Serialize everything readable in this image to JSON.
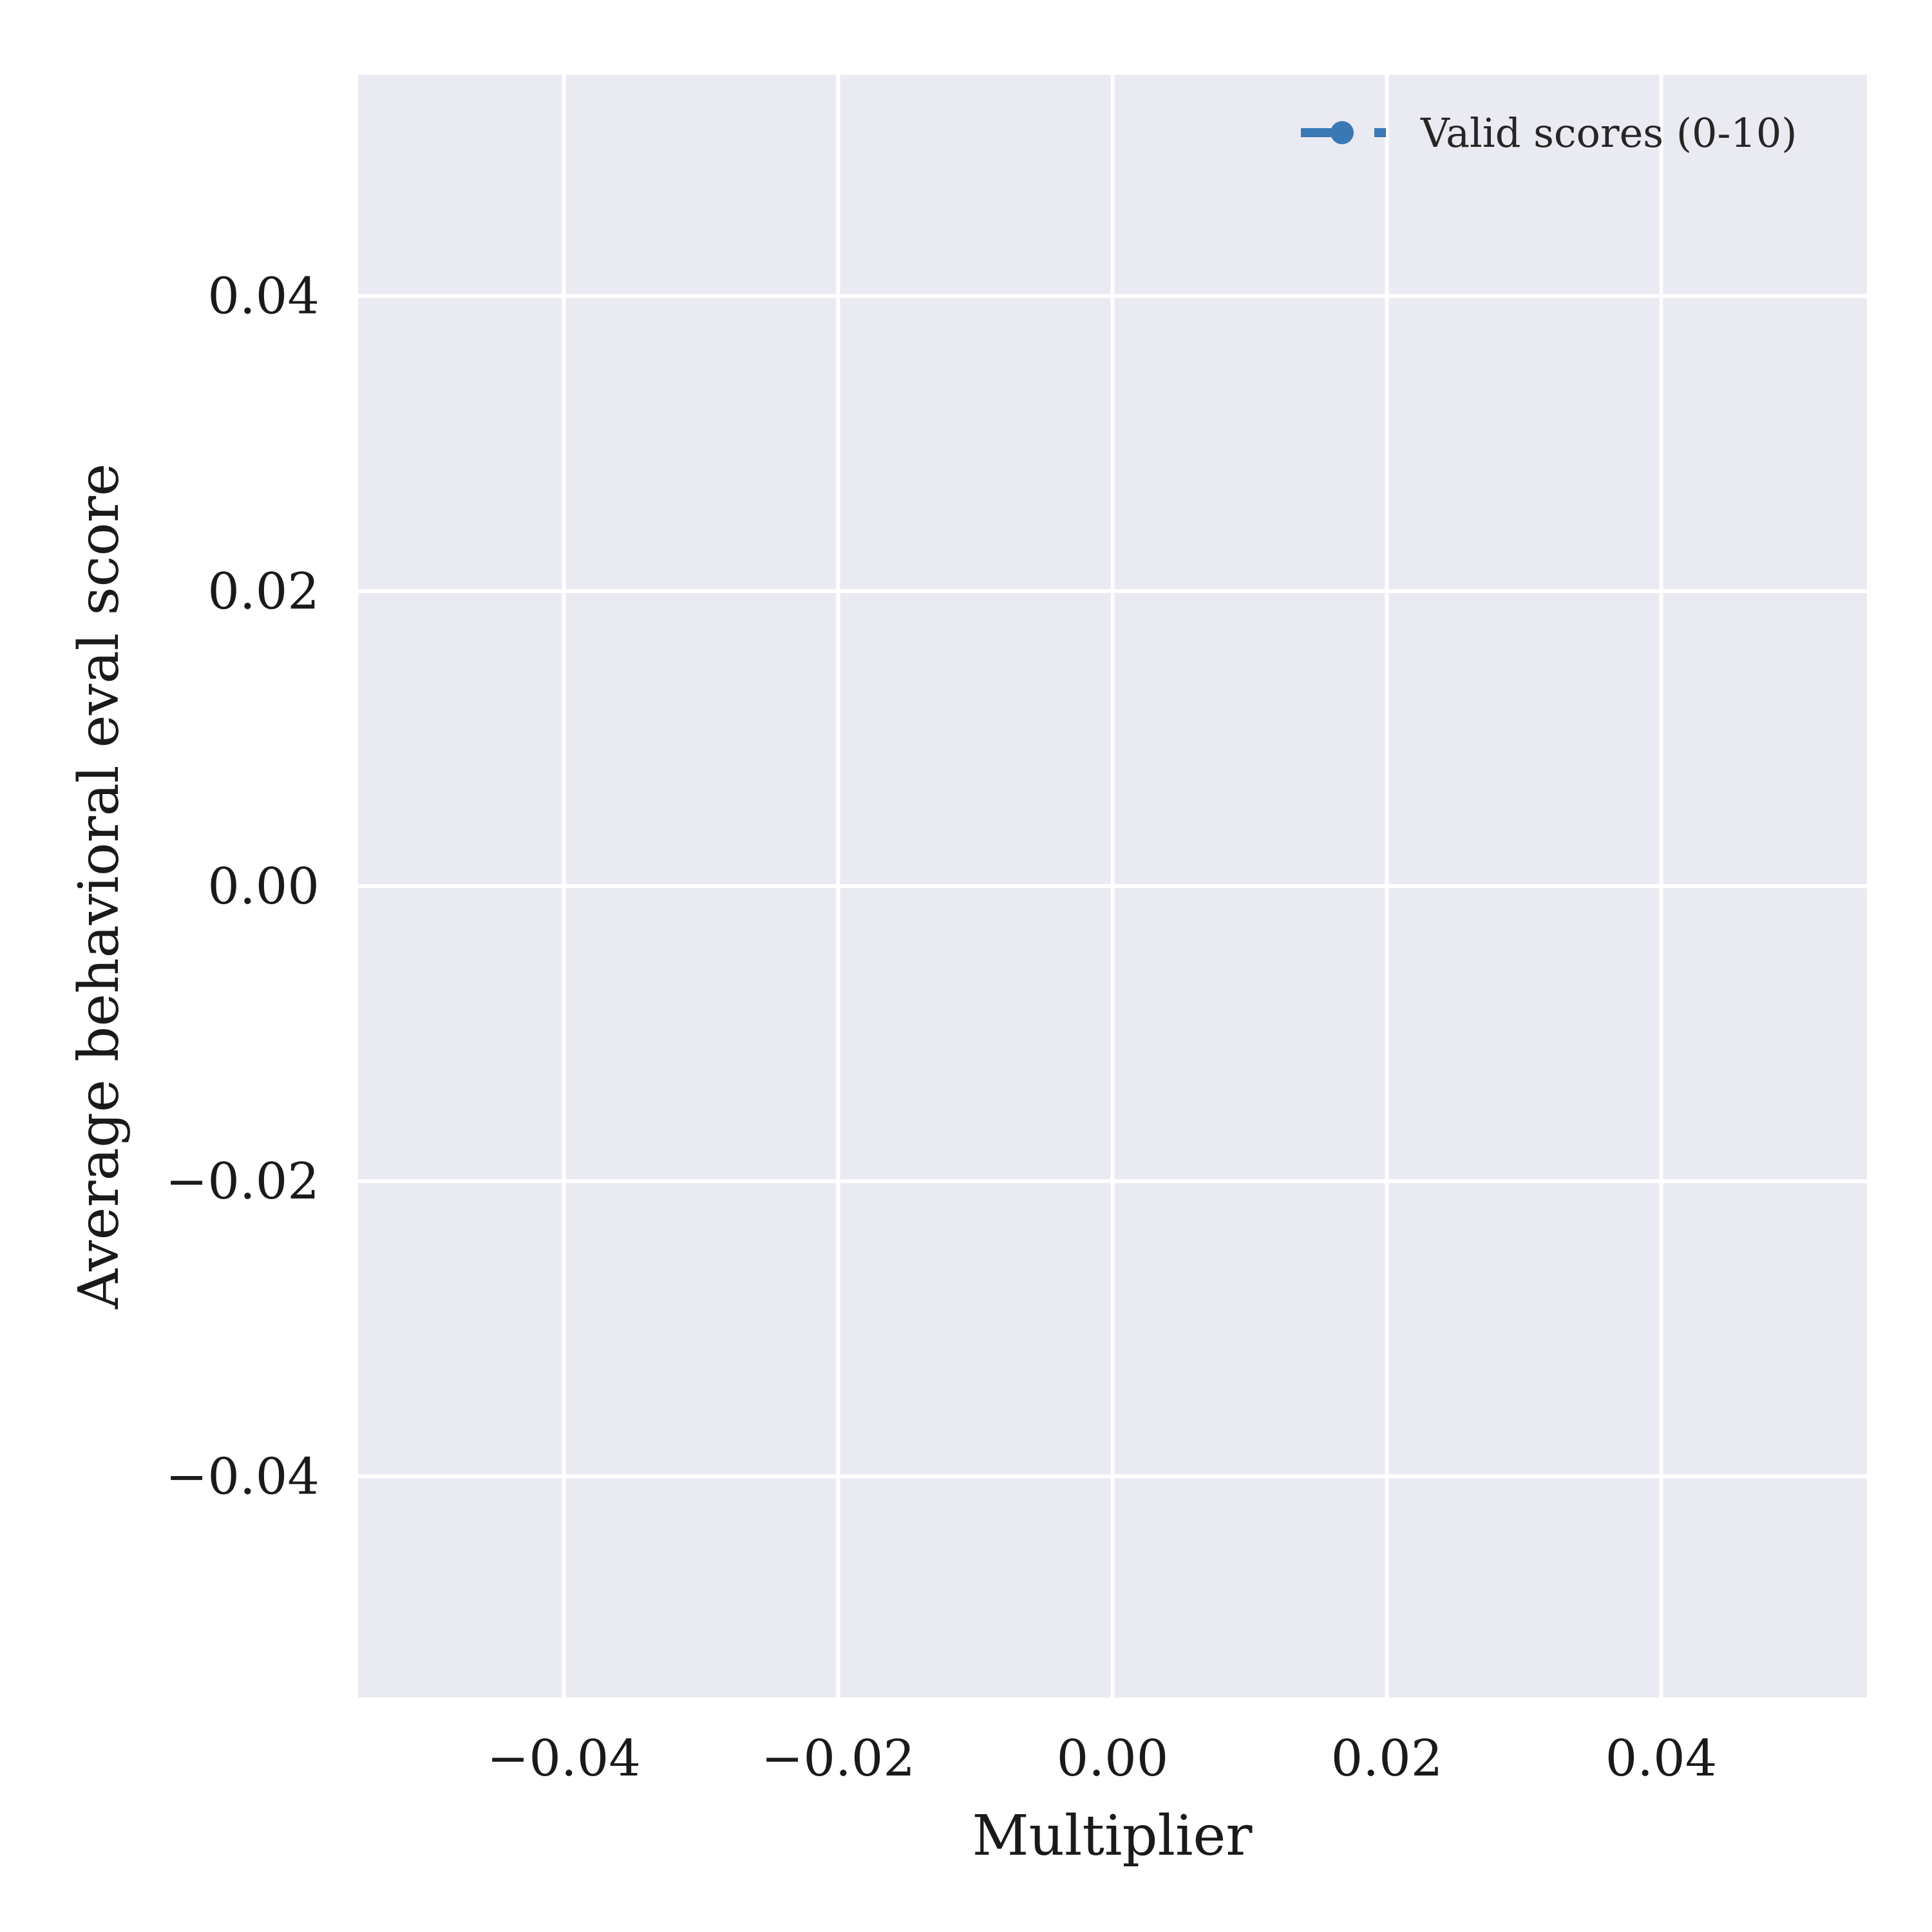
{
  "chart_data": {
    "type": "line",
    "title": "",
    "xlabel": "Multiplier",
    "ylabel": "Average behavioral eval score",
    "xlim": [
      -0.055,
      0.055
    ],
    "ylim": [
      -0.055,
      0.055
    ],
    "xticks": [
      -0.04,
      -0.02,
      0.0,
      0.02,
      0.04
    ],
    "yticks": [
      -0.04,
      -0.02,
      0.0,
      0.02,
      0.04
    ],
    "xtick_labels": [
      "−0.04",
      "−0.02",
      "0.00",
      "0.02",
      "0.04"
    ],
    "ytick_labels": [
      "−0.04",
      "−0.02",
      "0.00",
      "0.02",
      "0.04"
    ],
    "grid": true,
    "background": "#eaeaf2",
    "legend_position": "top-right",
    "series": [
      {
        "name": "Valid scores (0-10)",
        "color": "#3a78b5",
        "marker": "circle",
        "x": [],
        "y": []
      }
    ]
  }
}
